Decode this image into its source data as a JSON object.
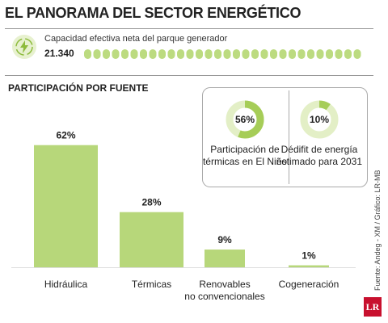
{
  "title": "EL PANORAMA DEL SECTOR ENERGÉTICO",
  "capacity": {
    "label": "Capacidad efectiva neta del parque generador",
    "value": "21.340"
  },
  "section_title": "PARTICIPACIÓN POR FUENTE",
  "source": "Fuente: Andeg - XM / Gráfico: LR-MB",
  "logo": "LR",
  "chart_data": [
    {
      "type": "bar",
      "categories": [
        "Hidráulica",
        "Térmicas",
        "Renovables\nno convencionales",
        "Cogeneración"
      ],
      "values": [
        62,
        28,
        9,
        1
      ],
      "value_labels": [
        "62%",
        "28%",
        "9%",
        "1%"
      ],
      "color": "#b7d77a"
    },
    {
      "type": "donut",
      "values": [
        56
      ],
      "value_labels": [
        "56%"
      ],
      "label": "Participación de\ntérmicas en El Niño",
      "color": "#a6cd58"
    },
    {
      "type": "donut",
      "values": [
        10
      ],
      "value_labels": [
        "10%"
      ],
      "label": "Dédifit de energía\nestimado para 2031",
      "color": "#a6cd58"
    }
  ]
}
